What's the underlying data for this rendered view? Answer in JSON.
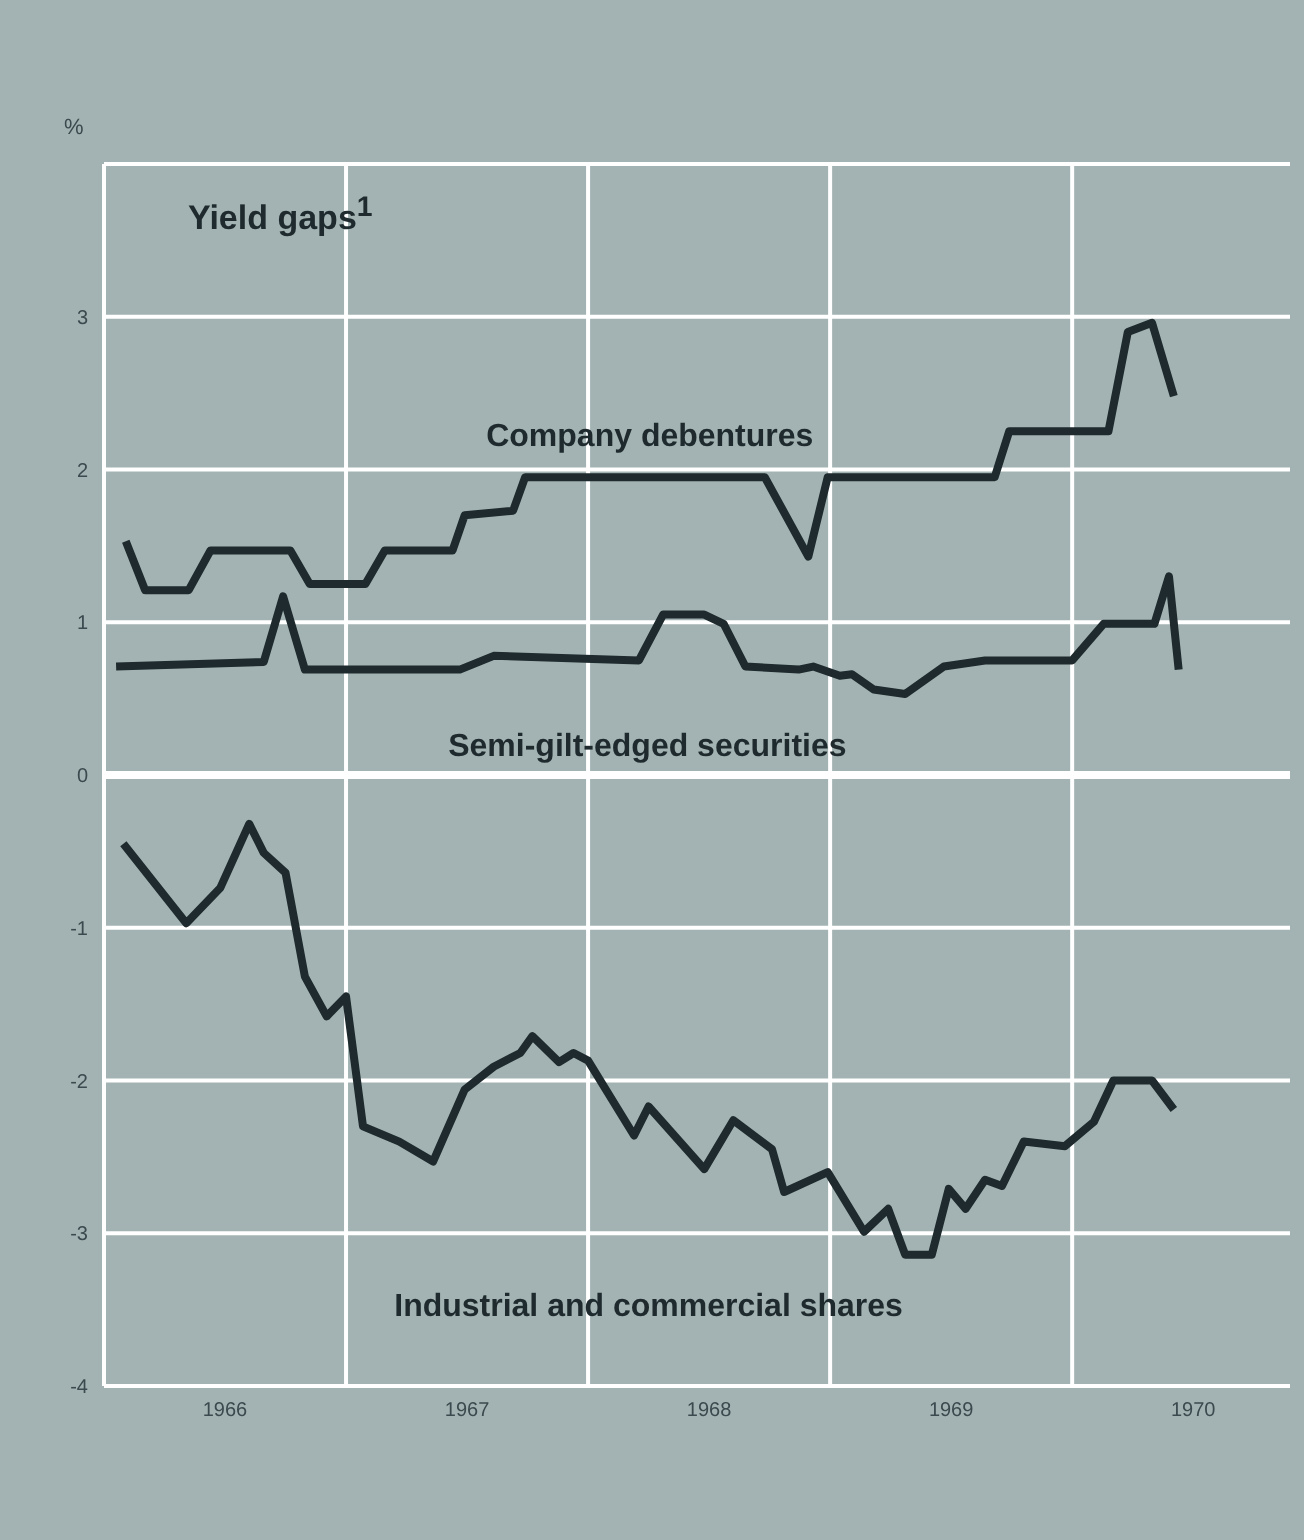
{
  "chart_data": {
    "type": "line",
    "title": "Yield gaps$^{1}$",
    "ylabel": "%",
    "xlim": [
      1966,
      1970.9
    ],
    "xticks": [
      {
        "value": 1966.5,
        "label": "1966"
      },
      {
        "value": 1967,
        "label": null
      },
      {
        "value": 1967.5,
        "label": "1967"
      },
      {
        "value": 1968,
        "label": null
      },
      {
        "value": 1968.5,
        "label": "1968"
      },
      {
        "value": 1969,
        "label": null
      },
      {
        "value": 1969.5,
        "label": "1969"
      },
      {
        "value": 1970,
        "label": null
      },
      {
        "value": 1970.5,
        "label": "1970"
      }
    ],
    "ylim": [
      -4,
      4
    ],
    "yticks": [
      -4,
      -3,
      -2,
      -1,
      0,
      1,
      2,
      3,
      {
        "value": 4,
        "label": null
      }
    ],
    "grid": true,
    "marker": "none",
    "line_style": "solid",
    "ref_lines": [
      {
        "axis": "y",
        "value": 0,
        "color": "#ffffff"
      }
    ],
    "series": [
      {
        "name": "Company debentures",
        "color": "#1e2a2e",
        "x": [
          1966.09,
          1966.17,
          1966.35,
          1966.44,
          1966.77,
          1966.85,
          1967.08,
          1967.16,
          1967.44,
          1967.49,
          1967.69,
          1967.74,
          1968.73,
          1968.91,
          1968.99,
          1969.68,
          1969.74,
          1970.15,
          1970.23,
          1970.33,
          1970.42
        ],
        "values": [
          1.53,
          1.21,
          1.21,
          1.47,
          1.47,
          1.25,
          1.25,
          1.47,
          1.47,
          1.7,
          1.73,
          1.95,
          1.95,
          1.43,
          1.95,
          1.95,
          2.25,
          2.25,
          2.9,
          2.96,
          2.48
        ]
      },
      {
        "name": "Semi-gilt-edged securities",
        "color": "#1e2a2e",
        "x": [
          1966.05,
          1966.66,
          1966.74,
          1966.83,
          1967.47,
          1967.61,
          1968.21,
          1968.31,
          1968.48,
          1968.56,
          1968.65,
          1968.87,
          1968.93,
          1969.04,
          1969.09,
          1969.18,
          1969.31,
          1969.47,
          1969.64,
          1970.0,
          1970.13,
          1970.34,
          1970.4,
          1970.44
        ],
        "values": [
          0.71,
          0.74,
          1.17,
          0.69,
          0.69,
          0.78,
          0.75,
          1.05,
          1.05,
          0.99,
          0.71,
          0.69,
          0.71,
          0.65,
          0.66,
          0.56,
          0.53,
          0.71,
          0.75,
          0.75,
          0.99,
          0.99,
          1.3,
          0.69
        ]
      },
      {
        "name": "Industrial and commercial shares",
        "color": "#1e2a2e",
        "x": [
          1966.08,
          1966.34,
          1966.48,
          1966.6,
          1966.66,
          1966.75,
          1966.83,
          1966.92,
          1967.0,
          1967.07,
          1967.22,
          1967.36,
          1967.49,
          1967.61,
          1967.72,
          1967.77,
          1967.88,
          1967.94,
          1968.0,
          1968.19,
          1968.25,
          1968.48,
          1968.6,
          1968.76,
          1968.81,
          1968.99,
          1969.14,
          1969.24,
          1969.31,
          1969.42,
          1969.49,
          1969.56,
          1969.64,
          1969.71,
          1969.8,
          1969.97,
          1970.09,
          1970.17,
          1970.33,
          1970.42
        ],
        "values": [
          -0.45,
          -0.97,
          -0.74,
          -0.32,
          -0.51,
          -0.64,
          -1.32,
          -1.58,
          -1.45,
          -2.3,
          -2.4,
          -2.53,
          -2.06,
          -1.91,
          -1.82,
          -1.71,
          -1.88,
          -1.82,
          -1.87,
          -2.36,
          -2.17,
          -2.58,
          -2.26,
          -2.45,
          -2.73,
          -2.6,
          -2.99,
          -2.84,
          -3.14,
          -3.14,
          -2.71,
          -2.84,
          -2.65,
          -2.69,
          -2.4,
          -2.43,
          -2.27,
          -2,
          -2,
          -2.19
        ]
      }
    ]
  }
}
